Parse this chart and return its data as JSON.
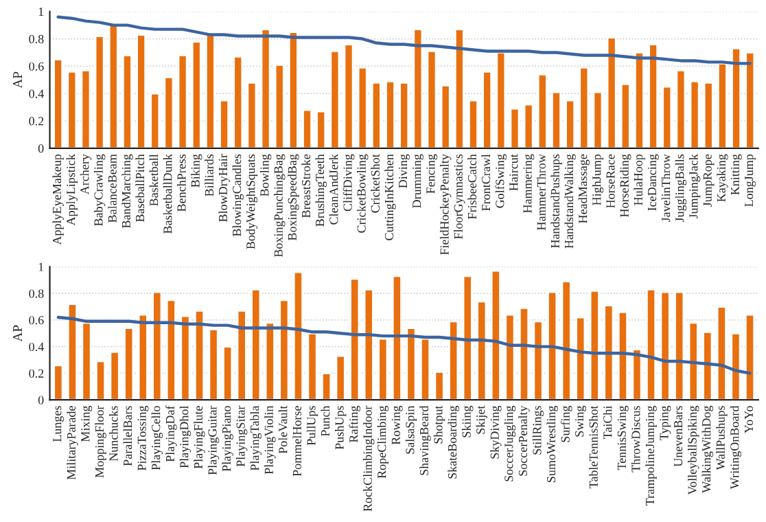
{
  "chart_data": [
    {
      "type": "bar",
      "ylabel": "AP",
      "categories": [
        "ApplyEyeMakeup",
        "ApplyLipstick",
        "Archery",
        "BabyCrawling",
        "BalanceBeam",
        "BandMarching",
        "BaseballPitch",
        "Basketball",
        "BasketballDunk",
        "BenchPress",
        "Biking",
        "Billiards",
        "BlowDryHair",
        "BlowingCandles",
        "BodyWeightSquats",
        "Bowling",
        "BoxingPunchingBag",
        "BoxingSpeedBag",
        "BreastStroke",
        "BrushingTeeth",
        "CleanAndJerk",
        "CliffDiving",
        "CricketBowling",
        "CricketShot",
        "CuttingInKitchen",
        "Diving",
        "Drumming",
        "Fencing",
        "FieldHockeyPenalty",
        "FloorGymnastics",
        "FrisbeeCatch",
        "FrontCrawl",
        "GolfSwing",
        "Haircut",
        "Hammering",
        "HammerThrow",
        "HandstandPushups",
        "HandstandWalking",
        "HeadMassage",
        "HighJump",
        "HorseRace",
        "HorseRiding",
        "HulaHoop",
        "IceDancing",
        "JavelinThrow",
        "JugglingBalls",
        "JumpingJack",
        "JumpRope",
        "Kayaking",
        "Knitting",
        "LongJump"
      ],
      "series": [
        {
          "color": "#e8700f",
          "values": [
            0.65,
            0.56,
            0.57,
            0.82,
            0.9,
            0.68,
            0.83,
            0.4,
            0.52,
            0.68,
            0.78,
            0.83,
            0.35,
            0.67,
            0.48,
            0.87,
            0.61,
            0.85,
            0.28,
            0.27,
            0.71,
            0.76,
            0.59,
            0.48,
            0.49,
            0.48,
            0.87,
            0.71,
            0.46,
            0.87,
            0.35,
            0.56,
            0.7,
            0.29,
            0.32,
            0.54,
            0.41,
            0.35,
            0.59,
            0.41,
            0.81,
            0.47,
            0.7,
            0.76,
            0.45,
            0.57,
            0.49,
            0.48,
            0.62,
            0.73,
            0.7
          ]
        },
        {
          "type": "line",
          "color": "#3d64a0",
          "values": [
            0.96,
            0.95,
            0.93,
            0.92,
            0.9,
            0.9,
            0.88,
            0.87,
            0.87,
            0.87,
            0.85,
            0.83,
            0.83,
            0.82,
            0.82,
            0.82,
            0.82,
            0.81,
            0.81,
            0.81,
            0.81,
            0.81,
            0.8,
            0.77,
            0.76,
            0.76,
            0.75,
            0.75,
            0.74,
            0.73,
            0.72,
            0.71,
            0.71,
            0.71,
            0.71,
            0.7,
            0.7,
            0.69,
            0.68,
            0.68,
            0.68,
            0.67,
            0.66,
            0.66,
            0.65,
            0.64,
            0.64,
            0.63,
            0.63,
            0.62,
            0.62
          ]
        }
      ],
      "ylim": [
        0,
        1
      ],
      "yticks": [
        0,
        0.2,
        0.4,
        0.6,
        0.8,
        1
      ],
      "grid": "y",
      "legend": false,
      "marker": "none",
      "line_style": "solid"
    },
    {
      "type": "bar",
      "ylabel": "AP",
      "categories": [
        "Lunges",
        "MilitaryParade",
        "Mixing",
        "MoppingFloor",
        "Nunchucks",
        "ParallelBars",
        "PizzaTossing",
        "PlayingCello",
        "PlayingDaf",
        "PlayingDhol",
        "PlayingFlute",
        "PlayingGuitar",
        "PlayingPiano",
        "PlayingSitar",
        "PlayingTabla",
        "PlayingViolin",
        "PoleVault",
        "PommelHorse",
        "PullUps",
        "Punch",
        "PushUps",
        "Rafting",
        "RockClimbingIndoor",
        "RopeClimbing",
        "Rowing",
        "SalsaSpin",
        "ShavingBeard",
        "Shotput",
        "SkateBoarding",
        "Skiing",
        "Skijet",
        "SkyDiving",
        "SoccerJuggling",
        "SoccerPenalty",
        "StillRings",
        "SumoWrestling",
        "Surfing",
        "Swing",
        "TableTennisShot",
        "TaiChi",
        "TennisSwing",
        "ThrowDiscus",
        "TrampolineJumping",
        "Typing",
        "UnevenBars",
        "VolleyballSpiking",
        "WalkingWithDog",
        "WallPushups",
        "WritingOnBoard",
        "YoYo"
      ],
      "series": [
        {
          "color": "#e8700f",
          "values": [
            0.26,
            0.72,
            0.58,
            0.29,
            0.36,
            0.54,
            0.64,
            0.81,
            0.75,
            0.63,
            0.67,
            0.53,
            0.4,
            0.67,
            0.83,
            0.58,
            0.75,
            0.96,
            0.5,
            0.2,
            0.33,
            0.91,
            0.83,
            0.46,
            0.93,
            0.54,
            0.46,
            0.21,
            0.59,
            0.93,
            0.74,
            0.97,
            0.64,
            0.69,
            0.59,
            0.81,
            0.89,
            0.62,
            0.82,
            0.71,
            0.66,
            0.38,
            0.83,
            0.81,
            0.81,
            0.58,
            0.51,
            0.7,
            0.5,
            0.64
          ]
        },
        {
          "type": "line",
          "color": "#3d64a0",
          "values": [
            0.62,
            0.61,
            0.59,
            0.59,
            0.59,
            0.59,
            0.58,
            0.58,
            0.58,
            0.57,
            0.57,
            0.56,
            0.56,
            0.54,
            0.54,
            0.54,
            0.54,
            0.53,
            0.51,
            0.51,
            0.5,
            0.49,
            0.49,
            0.48,
            0.48,
            0.48,
            0.47,
            0.47,
            0.46,
            0.45,
            0.45,
            0.44,
            0.41,
            0.41,
            0.4,
            0.4,
            0.38,
            0.36,
            0.35,
            0.35,
            0.35,
            0.34,
            0.32,
            0.29,
            0.29,
            0.28,
            0.27,
            0.26,
            0.22,
            0.2
          ]
        }
      ],
      "ylim": [
        0,
        1
      ],
      "yticks": [
        0,
        0.2,
        0.4,
        0.6,
        0.8,
        1
      ],
      "grid": "y",
      "legend": false,
      "marker": "none",
      "line_style": "solid"
    }
  ]
}
